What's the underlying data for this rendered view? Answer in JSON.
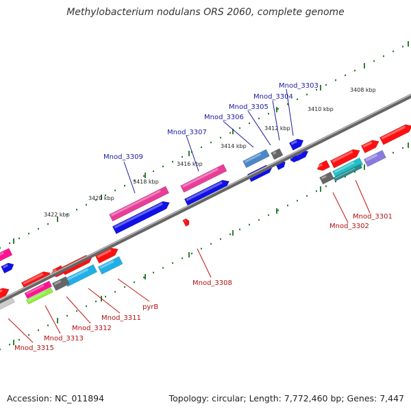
{
  "header": {
    "title": "Methylobacterium nodulans ORS 2060, complete genome"
  },
  "footer": {
    "accession": "Accession: NC_011894",
    "summary": "Topology: circular; Length: 7,772,460 bp; Genes: 7,447"
  },
  "colors": {
    "backbone": "#888888",
    "tick": "#2e7d32",
    "label_top": "#1a1aa0",
    "label_bottom": "#b01010",
    "leader_top": "#1a1aa0",
    "leader_bottom": "#c01010"
  },
  "scale_labels": [
    {
      "text": "3408 kbp",
      "kb": 3408
    },
    {
      "text": "3410 kbp",
      "kb": 3410
    },
    {
      "text": "3412 kbp",
      "kb": 3412
    },
    {
      "text": "3414 kbp",
      "kb": 3414
    },
    {
      "text": "3416 kbp",
      "kb": 3416
    },
    {
      "text": "3418 kbp",
      "kb": 3418
    },
    {
      "text": "3420 kbp",
      "kb": 3420
    },
    {
      "text": "3422 kbp",
      "kb": 3422
    }
  ],
  "genes_top": [
    {
      "name": "Mnod_3303"
    },
    {
      "name": "Mnod_3304"
    },
    {
      "name": "Mnod_3305"
    },
    {
      "name": "Mnod_3306"
    },
    {
      "name": "Mnod_3307"
    },
    {
      "name": "Mnod_3309"
    }
  ],
  "genes_bottom": [
    {
      "name": "Mnod_3301"
    },
    {
      "name": "Mnod_3302"
    },
    {
      "name": "Mnod_3308"
    },
    {
      "name": "pyrB"
    },
    {
      "name": "Mnod_3311"
    },
    {
      "name": "Mnod_3312"
    },
    {
      "name": "Mnod_3313"
    },
    {
      "name": "Mnod_3315"
    }
  ]
}
